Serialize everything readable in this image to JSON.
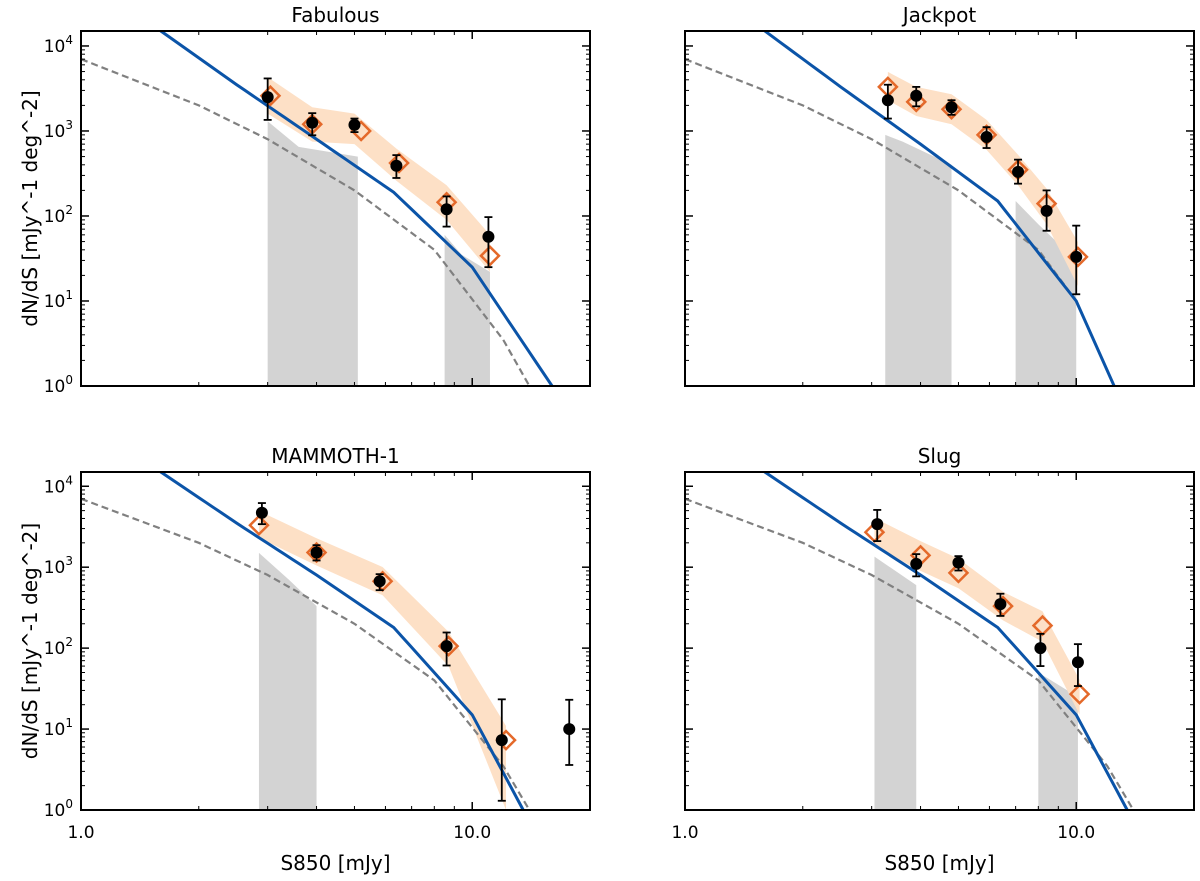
{
  "chart_data": [
    {
      "type": "line",
      "title": "Fabulous",
      "xlabel": "S850 [mJy]",
      "ylabel": "dN/dS [mJy^-1 deg^-2]",
      "xscale": "log",
      "yscale": "log",
      "xlim": [
        1.0,
        20.0
      ],
      "ylim": [
        1,
        15000
      ],
      "observed": {
        "x": [
          3.0,
          3.9,
          5.0,
          6.4,
          8.6,
          11.0
        ],
        "y": [
          2500,
          1250,
          1180,
          390,
          120,
          57
        ],
        "err_low": [
          1150,
          360,
          210,
          110,
          45,
          32
        ],
        "err_high": [
          1650,
          370,
          220,
          130,
          50,
          40
        ]
      },
      "model": {
        "x": [
          3.05,
          3.9,
          5.2,
          6.5,
          8.6,
          11.1
        ],
        "y": [
          2600,
          1200,
          1000,
          420,
          145,
          34
        ]
      },
      "model_band": {
        "x": [
          3.0,
          3.9,
          5.0,
          6.4,
          8.6,
          11.1
        ],
        "low": [
          1600,
          750,
          700,
          260,
          90,
          22
        ],
        "high": [
          4300,
          1900,
          1600,
          620,
          230,
          60
        ]
      },
      "field_band": [
        {
          "x": [
            3.0,
            3.6,
            5.1
          ],
          "low": [
            1,
            1,
            1
          ],
          "high": [
            1300,
            650,
            500
          ]
        },
        {
          "x": [
            8.5,
            9.4,
            11.1
          ],
          "low": [
            1,
            1,
            1
          ],
          "high": [
            60,
            35,
            22
          ]
        }
      ],
      "blue_fit": {
        "x": [
          1.0,
          1.6,
          2.5,
          4.0,
          6.3,
          10.0,
          16.0
        ],
        "y": [
          90000,
          15000,
          3500,
          800,
          190,
          25,
          1
        ]
      },
      "dashed_fit": {
        "x": [
          1.0,
          2.0,
          3.0,
          5.0,
          8.0,
          12.0,
          14.0
        ],
        "y": [
          7000,
          2000,
          800,
          200,
          40,
          3.5,
          1
        ]
      }
    },
    {
      "type": "line",
      "title": "Jackpot",
      "xlabel": "S850 [mJy]",
      "ylabel": "dN/dS [mJy^-1 deg^-2]",
      "xscale": "log",
      "yscale": "log",
      "xlim": [
        1.0,
        20.0
      ],
      "ylim": [
        1,
        15000
      ],
      "observed": {
        "x": [
          3.3,
          3.9,
          4.8,
          5.9,
          7.1,
          8.4,
          10.0
        ],
        "y": [
          2300,
          2600,
          1900,
          850,
          330,
          115,
          33
        ],
        "err_low": [
          900,
          650,
          350,
          220,
          90,
          48,
          21
        ],
        "err_high": [
          1200,
          700,
          400,
          260,
          130,
          85,
          44
        ]
      },
      "model": {
        "x": [
          3.3,
          3.9,
          4.8,
          5.9,
          7.1,
          8.4,
          10.1
        ],
        "y": [
          3300,
          2200,
          1800,
          900,
          350,
          140,
          33
        ]
      },
      "model_band": {
        "x": [
          3.3,
          3.9,
          4.8,
          5.9,
          7.1,
          8.4,
          10.1
        ],
        "low": [
          2300,
          1500,
          1200,
          600,
          230,
          80,
          15
        ]
      },
      "field_band": [
        {
          "x": [
            3.25,
            3.6,
            4.8
          ],
          "low": [
            1,
            1,
            1
          ],
          "high": [
            900,
            750,
            400
          ]
        },
        {
          "x": [
            7.0,
            8.0,
            10.0
          ],
          "low": [
            1,
            1,
            1
          ],
          "high": [
            150,
            80,
            30
          ]
        }
      ],
      "blue_fit": {
        "x": [
          1.0,
          1.6,
          2.5,
          4.0,
          6.3,
          10.0,
          12.5
        ],
        "y": [
          90000,
          15000,
          3300,
          700,
          150,
          10,
          1
        ]
      },
      "dashed_fit": {
        "x": [
          1.0,
          2.0,
          3.0,
          5.0,
          8.0,
          10.0,
          12.5
        ],
        "y": [
          7000,
          2000,
          800,
          200,
          40,
          10,
          1
        ]
      }
    },
    {
      "type": "line",
      "title": "MAMMOTH-1",
      "xlabel": "S850 [mJy]",
      "ylabel": "dN/dS [mJy^-1 deg^-2]",
      "xscale": "log",
      "yscale": "log",
      "xlim": [
        1.0,
        20.0
      ],
      "ylim": [
        1,
        15000
      ],
      "observed": {
        "x": [
          2.9,
          4.0,
          5.8,
          8.6,
          11.9,
          17.7
        ],
        "y": [
          4700,
          1520,
          670,
          106,
          7.3,
          10
        ],
        "err_low": [
          1300,
          310,
          150,
          45,
          6,
          6.4
        ],
        "err_high": [
          1500,
          350,
          150,
          50,
          16,
          13
        ]
      },
      "model": {
        "x": [
          2.85,
          4.0,
          5.9,
          8.7,
          12.2
        ],
        "y": [
          3300,
          1520,
          670,
          106,
          7.3
        ]
      },
      "model_band": {
        "x": [
          2.85,
          4.0,
          5.9,
          8.7,
          12.2
        ],
        "low": [
          2300,
          1050,
          450,
          60,
          1
        ]
      },
      "field_band": [
        {
          "x": [
            2.85,
            3.4,
            4.0
          ],
          "low": [
            1,
            1,
            1
          ],
          "high": [
            1500,
            700,
            330
          ]
        }
      ],
      "blue_fit": {
        "x": [
          1.0,
          1.6,
          2.5,
          4.0,
          6.3,
          10.0,
          13.5
        ],
        "y": [
          90000,
          15000,
          3500,
          800,
          180,
          15,
          1
        ]
      },
      "dashed_fit": {
        "x": [
          1.0,
          2.0,
          3.0,
          5.0,
          8.0,
          12.0,
          14.0
        ],
        "y": [
          7000,
          2000,
          800,
          200,
          40,
          3.5,
          1
        ]
      }
    },
    {
      "type": "line",
      "title": "Slug",
      "xlabel": "S850 [mJy]",
      "ylabel": "dN/dS [mJy^-1 deg^-2]",
      "xscale": "log",
      "yscale": "log",
      "xlim": [
        1.0,
        20.0
      ],
      "ylim": [
        1,
        15000
      ],
      "observed": {
        "x": [
          3.1,
          3.9,
          5.0,
          6.4,
          8.1,
          10.1
        ],
        "y": [
          3400,
          1100,
          1140,
          350,
          100,
          67
        ],
        "err_low": [
          1300,
          330,
          230,
          100,
          40,
          33
        ],
        "err_high": [
          1700,
          350,
          230,
          120,
          50,
          45
        ]
      },
      "model": {
        "x": [
          3.05,
          4.0,
          5.0,
          6.5,
          8.2,
          10.2
        ],
        "y": [
          2700,
          1400,
          850,
          330,
          190,
          27
        ]
      },
      "model_band": {
        "x": [
          3.05,
          4.0,
          5.0,
          6.5,
          8.2,
          10.2
        ],
        "low": [
          1800,
          900,
          550,
          220,
          120,
          15
        ]
      },
      "field_band": [
        {
          "x": [
            3.05,
            3.9
          ],
          "low": [
            1,
            1
          ],
          "high": [
            1350,
            600
          ]
        },
        {
          "x": [
            8.0,
            10.1
          ],
          "low": [
            1,
            1
          ],
          "high": [
            50,
            25
          ]
        }
      ],
      "blue_fit": {
        "x": [
          1.0,
          1.6,
          2.5,
          4.0,
          6.3,
          10.0,
          13.5
        ],
        "y": [
          90000,
          15000,
          3500,
          800,
          180,
          15,
          1
        ]
      },
      "dashed_fit": {
        "x": [
          1.0,
          2.0,
          3.0,
          5.0,
          8.0,
          12.0,
          14.0
        ],
        "y": [
          7000,
          2000,
          800,
          200,
          40,
          3.5,
          1
        ]
      }
    }
  ],
  "axis_text": {
    "y_ticks": [
      "10^0",
      "10^1",
      "10^2",
      "10^3",
      "10^4"
    ],
    "x_ticks": [
      "1.0",
      "10.0"
    ],
    "xlabel": "S850 [mJy]",
    "ylabel": "dN/dS [mJy^-1 deg^-2]"
  },
  "colors": {
    "blue": "#0b54a8",
    "dashed": "#808080",
    "orange": "#e4692a",
    "band": "#fde0c6",
    "grey": "#d3d3d3"
  }
}
